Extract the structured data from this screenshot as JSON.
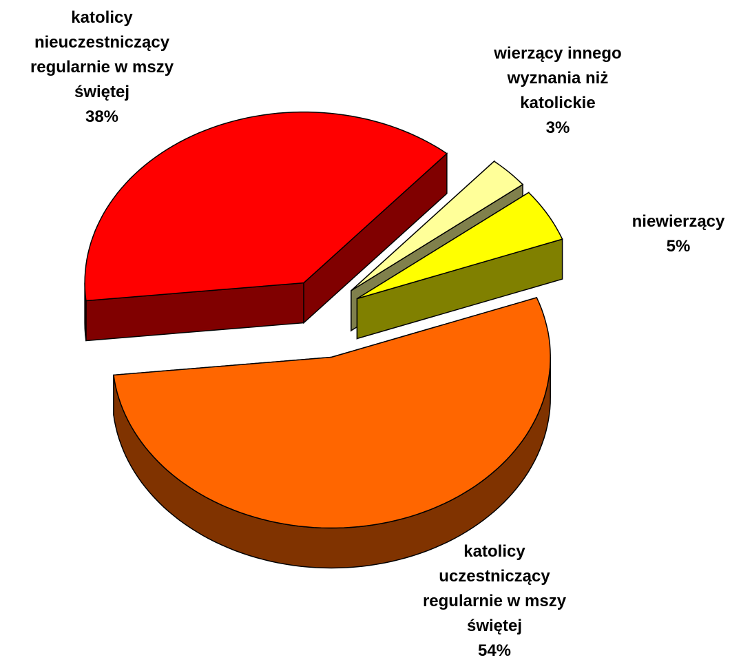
{
  "chart_data": {
    "type": "pie",
    "categories": [
      "katolicy\nnieuczestniczący\nregularnie w mszy\nświętej",
      "wierzący innego\nwyznania niż\nkatolickie",
      "niewierzący",
      "katolicy\nuczestniczący\nregularnie w mszy\nświętej"
    ],
    "values": [
      38,
      3,
      5,
      54
    ],
    "value_labels": [
      "38%",
      "3%",
      "5%",
      "54%"
    ],
    "colors": [
      "#FF0000",
      "#FFFF99",
      "#FFFF00",
      "#FF6600"
    ],
    "side_colors": [
      "#800000",
      "#80804C",
      "#808000",
      "#803300"
    ]
  }
}
